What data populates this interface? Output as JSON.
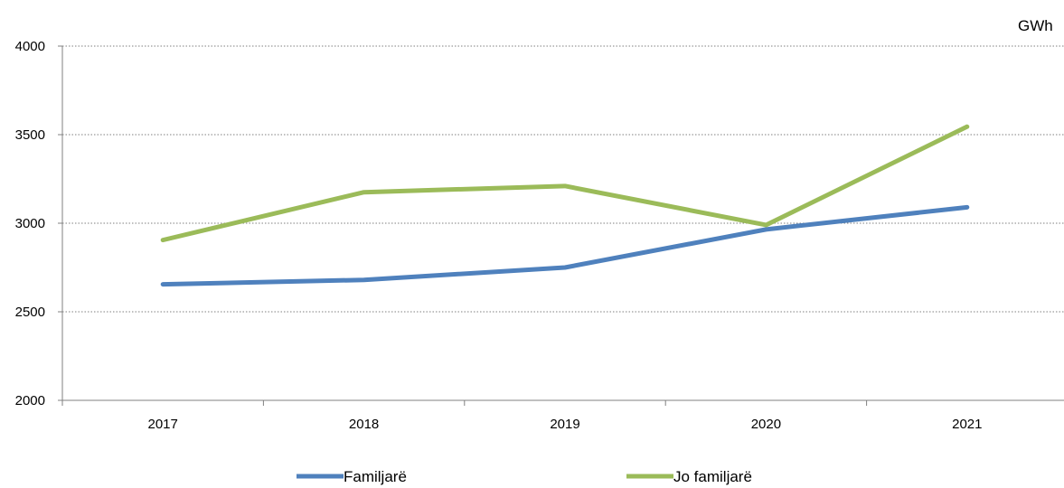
{
  "chart_data": {
    "type": "line",
    "title": "",
    "unit_label": "GWh",
    "xlabel": "",
    "ylabel": "",
    "categories": [
      "2017",
      "2018",
      "2019",
      "2020",
      "2021"
    ],
    "ylim": [
      2000,
      4000
    ],
    "yticks": [
      2000,
      2500,
      3000,
      3500,
      4000
    ],
    "ytick_labels": [
      "2000",
      "2500",
      "3000",
      "3500",
      "4000"
    ],
    "grid": "horizontal dotted",
    "legend_position": "bottom",
    "series": [
      {
        "name": "Familjarë",
        "color": "#4F81BD",
        "values": [
          2655,
          2680,
          2750,
          2965,
          3090
        ]
      },
      {
        "name": "Jo familjarë",
        "color": "#9BBB59",
        "values": [
          2905,
          3175,
          3210,
          2990,
          3545
        ]
      }
    ]
  }
}
